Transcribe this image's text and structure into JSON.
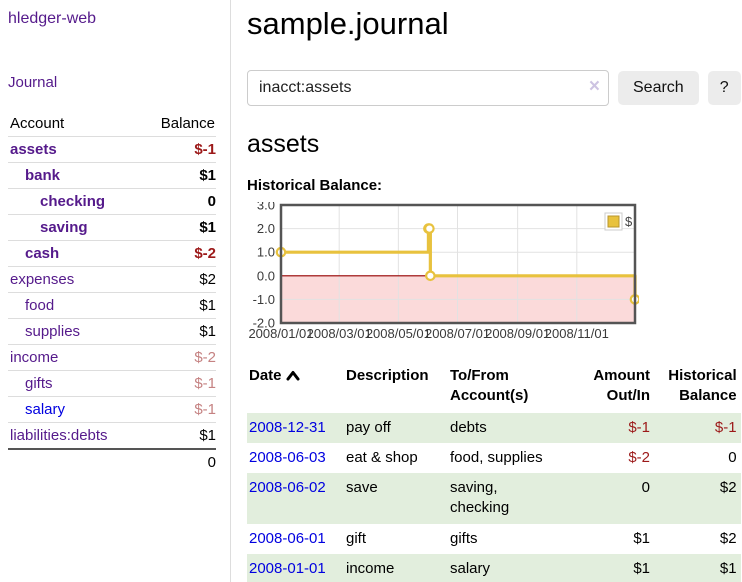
{
  "app": {
    "brand": "hledger-web"
  },
  "sidebar": {
    "journal_link": "Journal",
    "accounts_header": {
      "account": "Account",
      "balance": "Balance"
    },
    "accounts": [
      {
        "name": "assets",
        "indent": 0,
        "bold": true,
        "balance": "$-1",
        "balance_style": "neg-strong"
      },
      {
        "name": "bank",
        "indent": 1,
        "bold": true,
        "balance": "$1",
        "balance_style": ""
      },
      {
        "name": "checking",
        "indent": 2,
        "bold": true,
        "balance": "0",
        "balance_style": ""
      },
      {
        "name": "saving",
        "indent": 2,
        "bold": true,
        "balance": "$1",
        "balance_style": ""
      },
      {
        "name": "cash",
        "indent": 1,
        "bold": true,
        "balance": "$-2",
        "balance_style": "neg-strong"
      },
      {
        "name": "expenses",
        "indent": 0,
        "bold": false,
        "balance": "$2",
        "balance_style": ""
      },
      {
        "name": "food",
        "indent": 1,
        "bold": false,
        "balance": "$1",
        "balance_style": ""
      },
      {
        "name": "supplies",
        "indent": 1,
        "bold": false,
        "balance": "$1",
        "balance_style": ""
      },
      {
        "name": "income",
        "indent": 0,
        "bold": false,
        "balance": "$-2",
        "balance_style": "neg-light"
      },
      {
        "name": "gifts",
        "indent": 1,
        "bold": false,
        "balance": "$-1",
        "balance_style": "neg-light"
      },
      {
        "name": "salary",
        "indent": 1,
        "bold": false,
        "balance": "$-1",
        "balance_style": "neg-light",
        "link_color": "blue"
      },
      {
        "name": "liabilities:debts",
        "indent": 0,
        "bold": false,
        "balance": "$1",
        "balance_style": ""
      }
    ],
    "total": "0"
  },
  "header": {
    "title": "sample.journal"
  },
  "search": {
    "value": "inacct:assets",
    "clear_icon": "×",
    "button_label": "Search",
    "help_label": "?"
  },
  "account_page": {
    "heading": "assets",
    "chart_label": "Historical Balance:"
  },
  "chart_data": {
    "type": "line",
    "step": true,
    "title": "Historical Balance",
    "series": [
      {
        "name": "$",
        "color": "#e8c23e",
        "points": [
          [
            "2008-01-01",
            1
          ],
          [
            "2008-06-01",
            2
          ],
          [
            "2008-06-02",
            2
          ],
          [
            "2008-06-03",
            0
          ],
          [
            "2008-12-31",
            -1
          ]
        ]
      }
    ],
    "xlim": [
      "2008-01-01",
      "2008-12-31"
    ],
    "ylim": [
      -2,
      3
    ],
    "x_ticks": [
      "2008/01/01",
      "2008/03/01",
      "2008/05/01",
      "2008/07/01",
      "2008/09/01",
      "2008/11/01"
    ],
    "y_ticks": [
      "3.0",
      "2.0",
      "1.0",
      "0.0",
      "-1.0",
      "-2.0"
    ],
    "grid": true,
    "legend": "$",
    "legend_position": "top-right",
    "negative_region_color": "#fbdada",
    "zero_line_color": "#990000",
    "border_color": "#545454"
  },
  "register": {
    "columns": [
      {
        "label": "Date",
        "align": "left"
      },
      {
        "label": "Description",
        "align": "left"
      },
      {
        "label": "To/From Account(s)",
        "align": "left"
      },
      {
        "label": "Amount Out/In",
        "align": "right"
      },
      {
        "label": "Historical Balance",
        "align": "right"
      }
    ],
    "sort_icon": "caret-up",
    "rows": [
      {
        "date": "2008-12-31",
        "description": "pay off",
        "accounts": "debts",
        "amount": "$-1",
        "amount_neg": true,
        "balance": "$-1",
        "balance_neg": true
      },
      {
        "date": "2008-06-03",
        "description": "eat & shop",
        "accounts": "food, supplies",
        "amount": "$-2",
        "amount_neg": true,
        "balance": "0",
        "balance_neg": false
      },
      {
        "date": "2008-06-02",
        "description": "save",
        "accounts": "saving, checking",
        "amount": "0",
        "amount_neg": false,
        "balance": "$2",
        "balance_neg": false
      },
      {
        "date": "2008-06-01",
        "description": "gift",
        "accounts": "gifts",
        "amount": "$1",
        "amount_neg": false,
        "balance": "$2",
        "balance_neg": false
      },
      {
        "date": "2008-01-01",
        "description": "income",
        "accounts": "salary",
        "amount": "$1",
        "amount_neg": false,
        "balance": "$1",
        "balance_neg": false
      }
    ]
  }
}
